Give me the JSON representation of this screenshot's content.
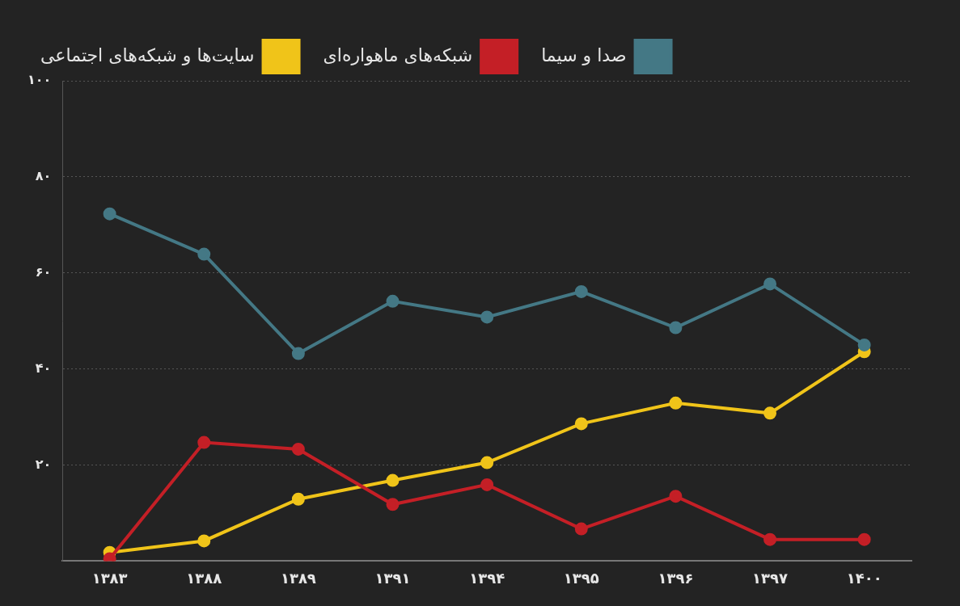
{
  "chart_data": {
    "type": "line",
    "categories": [
      "۱۳۸۳",
      "۱۳۸۸",
      "۱۳۸۹",
      "۱۳۹۱",
      "۱۳۹۴",
      "۱۳۹۵",
      "۱۳۹۶",
      "۱۳۹۷",
      "۱۴۰۰"
    ],
    "series": [
      {
        "name": "صدا و سیما",
        "color": "#447885",
        "values": [
          72.3,
          63.9,
          43.2,
          54.1,
          50.8,
          56.1,
          48.6,
          57.7,
          45.0
        ]
      },
      {
        "name": "شبکه‌های ماهواره‌ای",
        "color": "#c41f26",
        "values": [
          0.5,
          24.7,
          23.3,
          11.8,
          15.9,
          6.7,
          13.5,
          4.5,
          4.5
        ]
      },
      {
        "name": "سایت‌ها و شبکه‌های اجتماعی",
        "color": "#f0c419",
        "values": [
          1.8,
          4.2,
          12.9,
          16.8,
          20.5,
          28.6,
          32.9,
          30.8,
          43.6
        ]
      }
    ],
    "ylim": [
      0,
      100
    ],
    "yticks": [
      {
        "value": 20,
        "label": "۲۰"
      },
      {
        "value": 40,
        "label": "۴۰"
      },
      {
        "value": 60,
        "label": "۶۰"
      },
      {
        "value": 80,
        "label": "۸۰"
      },
      {
        "value": 100,
        "label": "۱۰۰"
      }
    ],
    "grid": true,
    "legend": "top",
    "marker": "circle"
  }
}
